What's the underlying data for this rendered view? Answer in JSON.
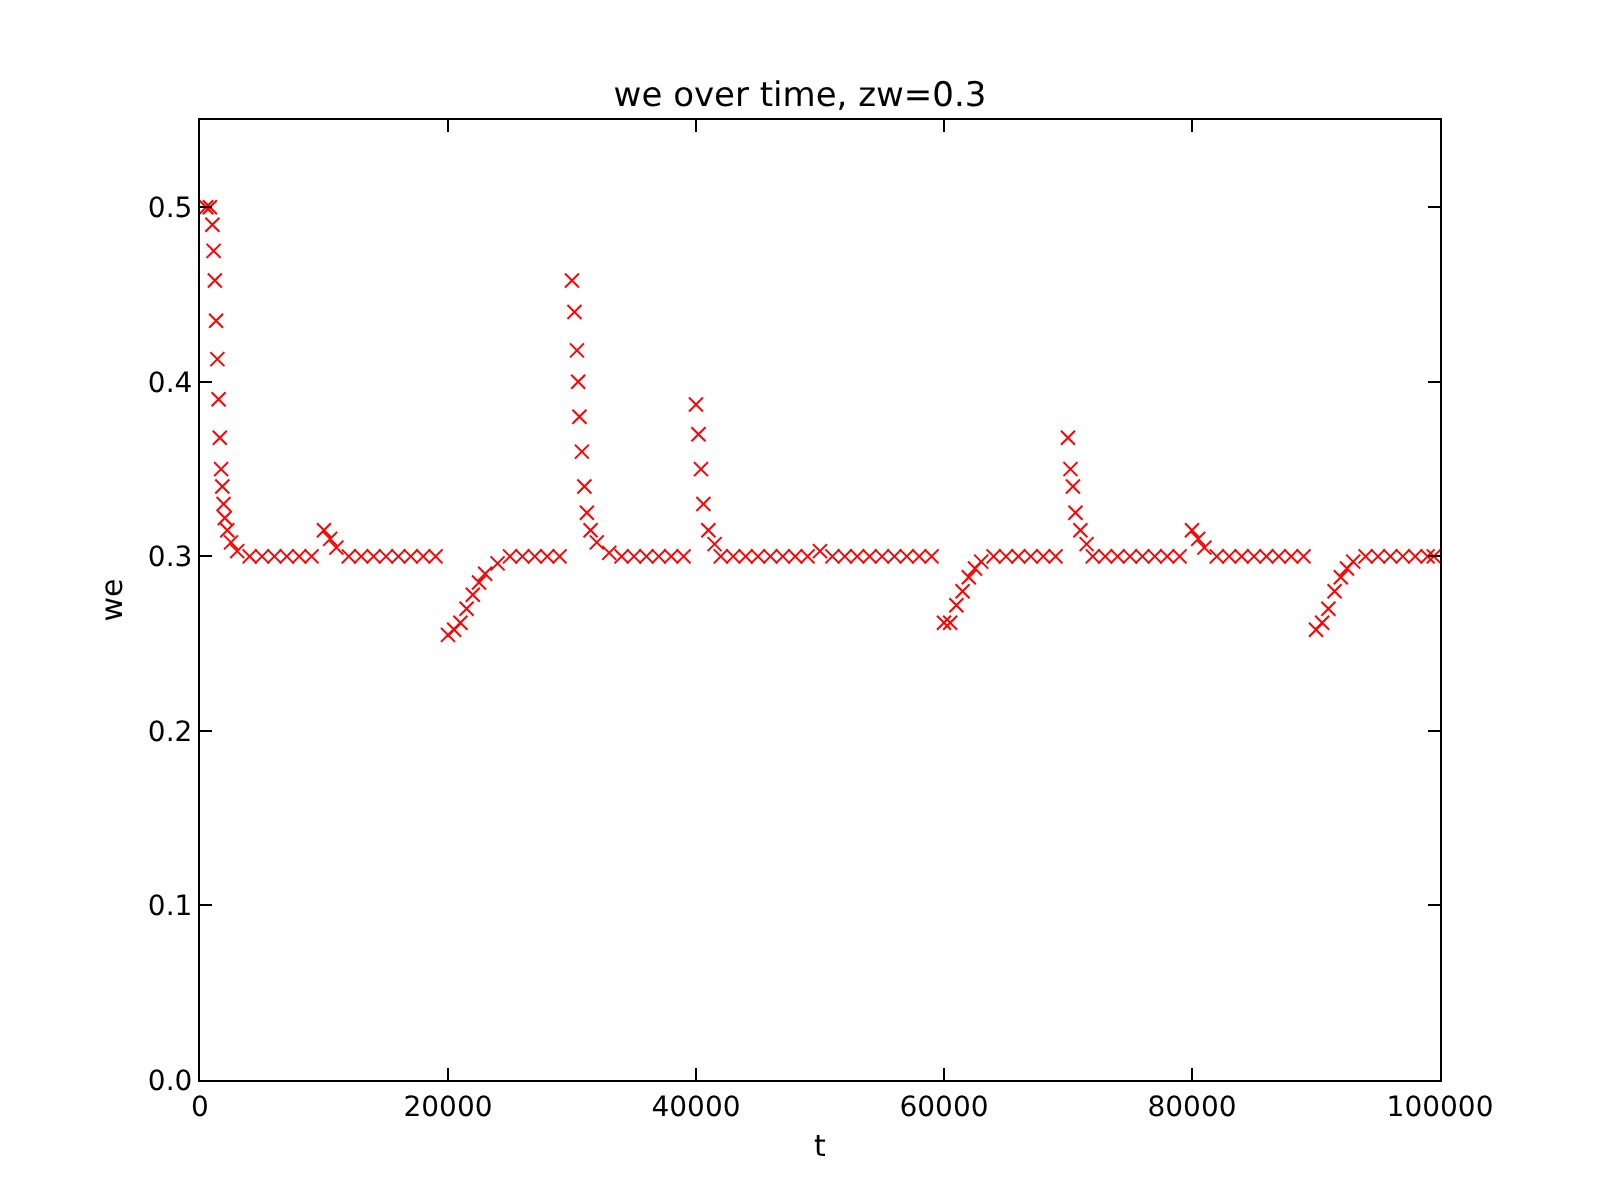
{
  "chart_data": {
    "type": "scatter",
    "title": "we over time, zw=0.3",
    "xlabel": "t",
    "ylabel": "we",
    "marker": "cross",
    "xlim": [
      0,
      100000
    ],
    "xticks": [
      0,
      20000,
      40000,
      60000,
      80000,
      100000
    ],
    "ylim": [
      0,
      0.55
    ],
    "yticks": [
      {
        "value": 0,
        "label": "0.0"
      },
      {
        "value": 0.1,
        "label": "0.1"
      },
      {
        "value": 0.2,
        "label": "0.2"
      },
      {
        "value": 0.3,
        "label": "0.3"
      },
      {
        "value": 0.4,
        "label": "0.4"
      },
      {
        "value": 0.5,
        "label": "0.5"
      }
    ],
    "series": [
      {
        "color": "#ff0000",
        "x": [
          500,
          800,
          1000,
          1100,
          1200,
          1300,
          1400,
          1500,
          1600,
          1700,
          1800,
          1900,
          2000,
          2200,
          2500,
          3000,
          4000,
          5000,
          6000,
          7000,
          8000,
          9000,
          10000,
          10500,
          11000,
          12000,
          13000,
          14000,
          15000,
          16000,
          17000,
          18000,
          19000,
          20000,
          20500,
          21000,
          21500,
          22000,
          22500,
          23000,
          24000,
          25000,
          26000,
          27000,
          28000,
          29000,
          30000,
          30200,
          30400,
          30500,
          30600,
          30800,
          31000,
          31200,
          31500,
          32000,
          33000,
          34000,
          35000,
          36000,
          37000,
          38000,
          39000,
          40000,
          40200,
          40400,
          40600,
          41000,
          41500,
          42000,
          43000,
          44000,
          45000,
          46000,
          47000,
          48000,
          49000,
          50000,
          51000,
          52000,
          53000,
          54000,
          55000,
          56000,
          57000,
          58000,
          59000,
          60000,
          60500,
          61000,
          61500,
          62000,
          62500,
          63000,
          64000,
          65000,
          66000,
          67000,
          68000,
          69000,
          70000,
          70200,
          70400,
          70600,
          71000,
          71500,
          72000,
          73000,
          74000,
          75000,
          76000,
          77000,
          78000,
          79000,
          80000,
          80500,
          81000,
          82000,
          83000,
          84000,
          85000,
          86000,
          87000,
          88000,
          89000,
          90000,
          90500,
          91000,
          91500,
          92000,
          92500,
          93000,
          94000,
          95000,
          96000,
          97000,
          98000,
          99000,
          99500
        ],
        "values": [
          0.5,
          0.5,
          0.49,
          0.475,
          0.458,
          0.435,
          0.413,
          0.39,
          0.368,
          0.35,
          0.34,
          0.33,
          0.322,
          0.315,
          0.308,
          0.303,
          0.3,
          0.3,
          0.3,
          0.3,
          0.3,
          0.3,
          0.315,
          0.31,
          0.305,
          0.3,
          0.3,
          0.3,
          0.3,
          0.3,
          0.3,
          0.3,
          0.3,
          0.255,
          0.258,
          0.262,
          0.27,
          0.278,
          0.285,
          0.29,
          0.296,
          0.3,
          0.3,
          0.3,
          0.3,
          0.3,
          0.458,
          0.44,
          0.418,
          0.4,
          0.38,
          0.36,
          0.34,
          0.325,
          0.315,
          0.308,
          0.302,
          0.3,
          0.3,
          0.3,
          0.3,
          0.3,
          0.3,
          0.387,
          0.37,
          0.35,
          0.33,
          0.315,
          0.307,
          0.3,
          0.3,
          0.3,
          0.3,
          0.3,
          0.3,
          0.3,
          0.3,
          0.303,
          0.3,
          0.3,
          0.3,
          0.3,
          0.3,
          0.3,
          0.3,
          0.3,
          0.3,
          0.262,
          0.262,
          0.272,
          0.28,
          0.288,
          0.293,
          0.297,
          0.3,
          0.3,
          0.3,
          0.3,
          0.3,
          0.3,
          0.368,
          0.35,
          0.34,
          0.325,
          0.315,
          0.307,
          0.3,
          0.3,
          0.3,
          0.3,
          0.3,
          0.3,
          0.3,
          0.3,
          0.315,
          0.31,
          0.305,
          0.3,
          0.3,
          0.3,
          0.3,
          0.3,
          0.3,
          0.3,
          0.3,
          0.258,
          0.262,
          0.27,
          0.28,
          0.288,
          0.293,
          0.297,
          0.3,
          0.3,
          0.3,
          0.3,
          0.3,
          0.3,
          0.3
        ]
      }
    ]
  }
}
